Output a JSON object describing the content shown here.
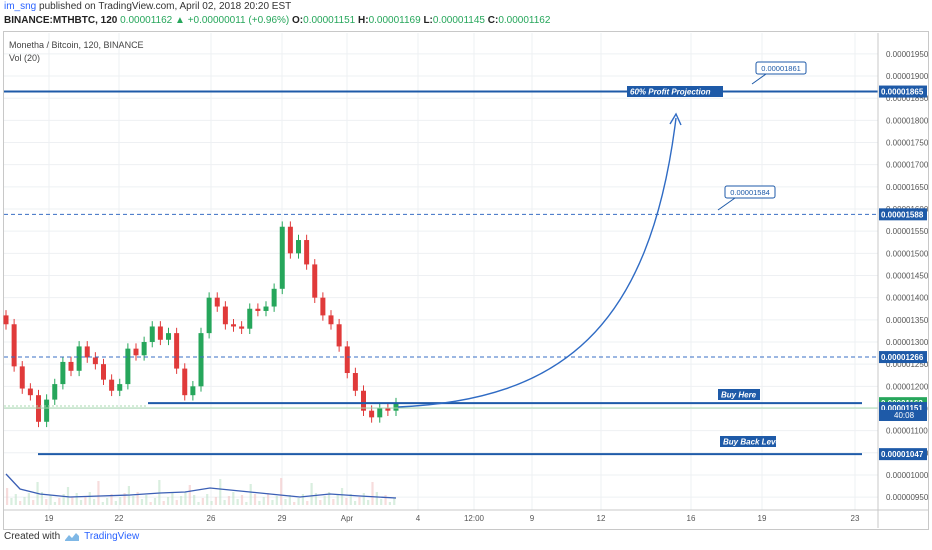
{
  "header": {
    "publisher": "im_sng",
    "published_text": " published on TradingView.com, April 02, 2018 20:20 EST",
    "symbol": "BINANCE:MTHBTC, 120",
    "last": "0.00001162",
    "change": "+0.00000011 (+0.96%)",
    "open_label": "O:",
    "open": "0.00001151",
    "high_label": "H:",
    "high": "0.00001169",
    "low_label": "L:",
    "low": "0.00001145",
    "close_label": "C:",
    "close": "0.00001162"
  },
  "footer": {
    "created_with": "Created with",
    "brand": "TradingView"
  },
  "colors": {
    "up": "#26a65b",
    "down": "#e03a3a",
    "annotation": "#1e5aa8",
    "dashed": "#3a6fc4",
    "volume": "#3b5fb5",
    "grid": "#eef0f3"
  },
  "chart_data": {
    "type": "candlestick",
    "title": "Monetha / Bitcoin, 120, BINANCE",
    "subtitle": "Vol (20)",
    "ylim": [
      9.3e-06,
      1.97e-05
    ],
    "y_ticks": [
      "0.00001950",
      "0.00001900",
      "0.00001850",
      "0.00001800",
      "0.00001750",
      "0.00001700",
      "0.00001650",
      "0.00001600",
      "0.00001550",
      "0.00001500",
      "0.00001450",
      "0.00001400",
      "0.00001350",
      "0.00001300",
      "0.00001250",
      "0.00001200",
      "0.00001150",
      "0.00001100",
      "0.00001050",
      "0.00001000",
      "0.00000950"
    ],
    "x_ticks": [
      "19",
      "22",
      "26",
      "29",
      "Apr",
      "4",
      "12:00",
      "9",
      "12",
      "16",
      "19",
      "23"
    ],
    "grid": true,
    "price_close_series": [
      1.34e-05,
      1.245e-05,
      1.195e-05,
      1.18e-05,
      1.12e-05,
      1.17e-05,
      1.205e-05,
      1.255e-05,
      1.235e-05,
      1.29e-05,
      1.265e-05,
      1.25e-05,
      1.215e-05,
      1.19e-05,
      1.205e-05,
      1.285e-05,
      1.27e-05,
      1.3e-05,
      1.335e-05,
      1.305e-05,
      1.32e-05,
      1.24e-05,
      1.18e-05,
      1.2e-05,
      1.32e-05,
      1.4e-05,
      1.38e-05,
      1.34e-05,
      1.335e-05,
      1.33e-05,
      1.375e-05,
      1.37e-05,
      1.38e-05,
      1.42e-05,
      1.56e-05,
      1.5e-05,
      1.53e-05,
      1.475e-05,
      1.4e-05,
      1.36e-05,
      1.34e-05,
      1.29e-05,
      1.23e-05,
      1.19e-05,
      1.145e-05,
      1.13e-05,
      1.15e-05,
      1.145e-05,
      1.162e-05
    ],
    "annotations": {
      "horizontal_lines": [
        {
          "label": "0.00001865",
          "value": 1.865e-05,
          "style": "solid"
        },
        {
          "label": "0.00001588",
          "value": 1.588e-05,
          "style": "dashed"
        },
        {
          "label": "0.00001266",
          "value": 1.266e-05,
          "style": "dashed"
        },
        {
          "label": "0.00001162",
          "value": 1.162e-05,
          "style": "solid"
        },
        {
          "label": "0.00001151",
          "value": 1.151e-05,
          "style": "solid"
        },
        {
          "label": "0.00001047",
          "value": 1.047e-05,
          "style": "solid"
        }
      ],
      "callouts": [
        {
          "text": "0.00001861"
        },
        {
          "text": "0.00001584"
        }
      ],
      "text_labels": [
        {
          "text": "60% Profit Projection"
        },
        {
          "text": "Buy Here"
        },
        {
          "text": "Buy Back Level"
        }
      ],
      "countdown": "40:08"
    }
  }
}
